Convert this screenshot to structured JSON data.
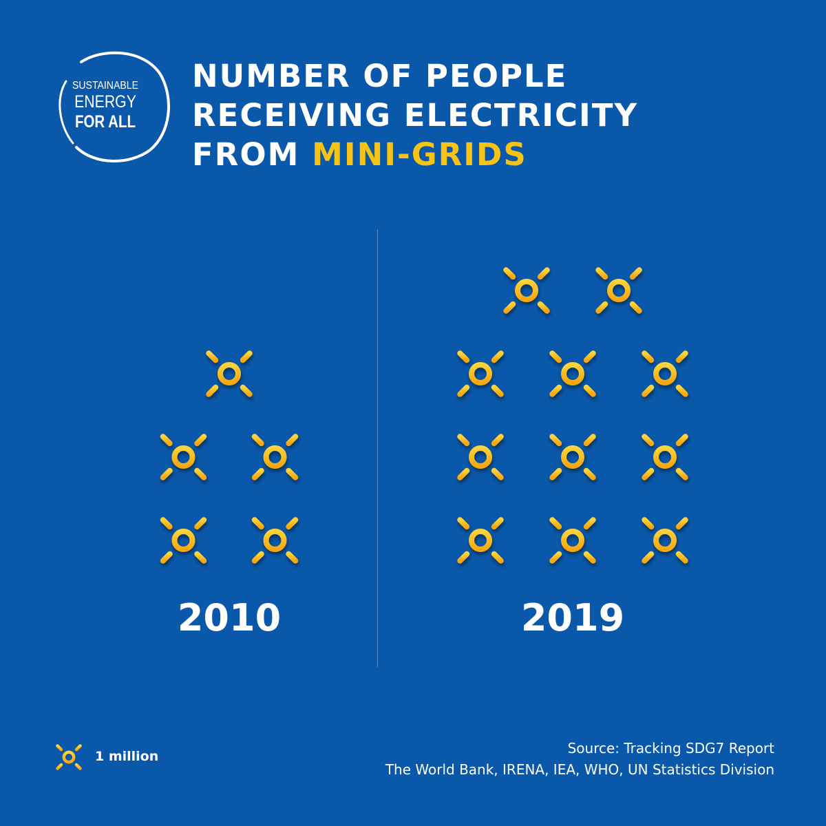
{
  "logo": {
    "line1": "SUSTAINABLE",
    "line2": "ENERGY",
    "line3": "FOR ALL"
  },
  "title": {
    "line1": "NUMBER OF PEOPLE",
    "line2": "RECEIVING ELECTRICITY",
    "line3_prefix": "FROM ",
    "line3_highlight": "MINI-GRIDS"
  },
  "colors": {
    "background": "#0a58a9",
    "highlight": "#f7c316",
    "icon": "#f9b917"
  },
  "legend": {
    "icon": "sun-icon",
    "label": "1 million"
  },
  "source": {
    "line1": "Source: Tracking SDG7 Report",
    "line2": "The World Bank, IRENA, IEA, WHO, UN Statistics Division"
  },
  "chart_data": {
    "type": "bar",
    "categories": [
      "2010",
      "2019"
    ],
    "values": [
      5,
      11
    ],
    "unit": "1 million",
    "icon": "sun-icon"
  }
}
